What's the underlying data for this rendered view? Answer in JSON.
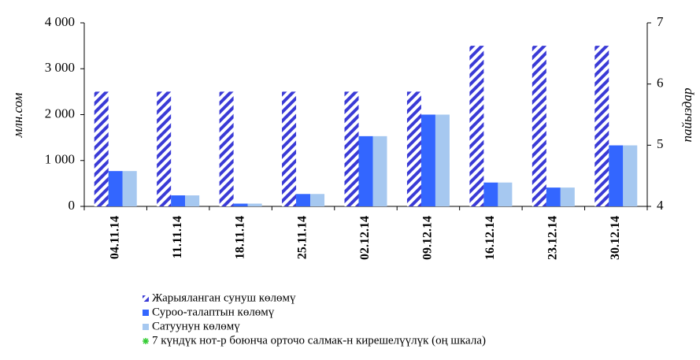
{
  "chart_data": {
    "type": "bar",
    "categories": [
      "04.11.14",
      "11.11.14",
      "18.11.14",
      "25.11.14",
      "02.12.14",
      "09.12.14",
      "16.12.14",
      "23.12.14",
      "30.12.14"
    ],
    "y_label": "млн.сом",
    "y2_label": "пайыздар",
    "ylim": [
      0,
      4000
    ],
    "yticks": [
      0,
      {
        "value": 1000,
        "label": "1 000"
      },
      {
        "value": 2000,
        "label": "2 000"
      },
      {
        "value": 3000,
        "label": "3 000"
      },
      {
        "value": 4000,
        "label": "4 000"
      }
    ],
    "y2lim": [
      4,
      7
    ],
    "y2ticks": [
      4,
      5,
      6,
      7
    ],
    "series": [
      {
        "name": "Жарыяланган сунуш көлөмү",
        "color": "#3a3ad6",
        "pattern": "hatch",
        "values": [
          2500,
          2500,
          2500,
          2500,
          2500,
          2500,
          3500,
          3500,
          3500
        ]
      },
      {
        "name": "Суроо-талаптын көлөмү",
        "color": "#3366ff",
        "values": [
          770,
          240,
          60,
          270,
          1530,
          2000,
          520,
          410,
          1330
        ]
      },
      {
        "name": "Сатуунун көлөмү",
        "color": "#a6c8f0",
        "values": [
          770,
          240,
          60,
          270,
          1530,
          2000,
          520,
          410,
          1330
        ]
      },
      {
        "name": "7 күндүк нот-р боюнча орточо салмак-н кирешелүүлүк (оң шкала)",
        "color": "#33cc33",
        "type": "line",
        "axis": "y2",
        "values": [
          null,
          null,
          null,
          null,
          null,
          null,
          null,
          null,
          null
        ]
      }
    ]
  }
}
